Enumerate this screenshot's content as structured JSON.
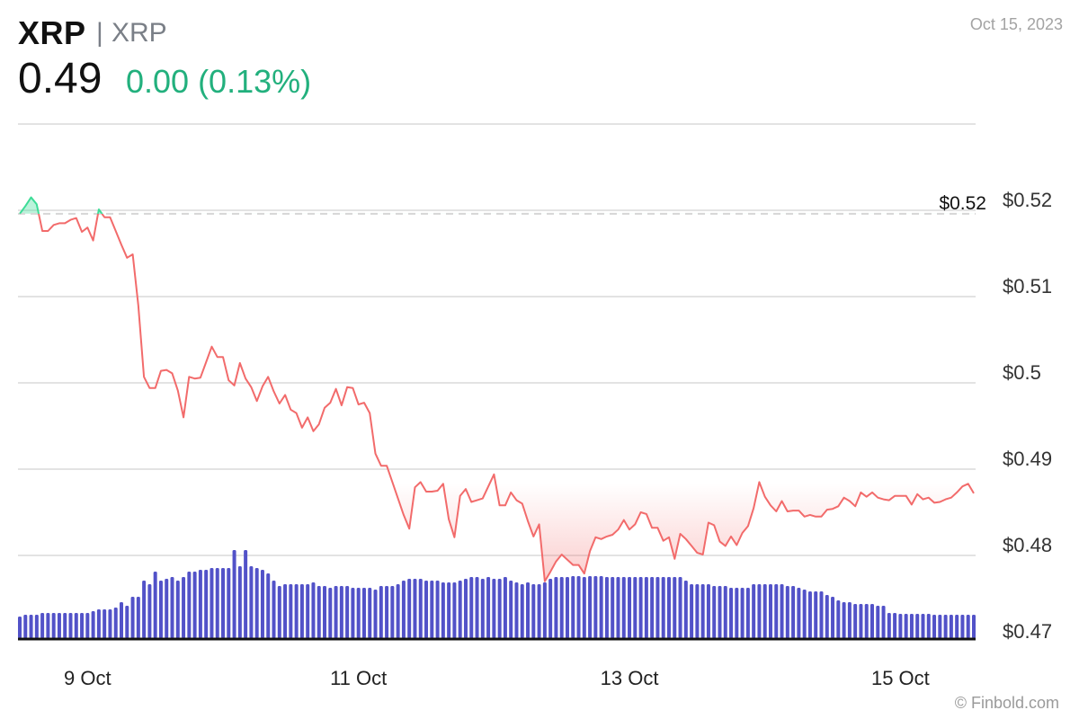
{
  "header": {
    "title": "XRP",
    "separator": "|",
    "symbol": "XRP",
    "price": "0.49",
    "change": "0.00 (0.13%)",
    "date": "Oct 15, 2023"
  },
  "footer": {
    "credit": "© Finbold.com"
  },
  "colors": {
    "line_below": "#f26b6b",
    "line_above": "#3ddc97",
    "volume_bars": "#5252c8",
    "change_positive": "#22b07d",
    "grid": "#e3e3e3"
  },
  "chart_data": {
    "type": "line",
    "baseline_type": "baseline area with volume bars",
    "reference_price": 0.5196,
    "reference_label": "$0.52",
    "ylim": [
      0.47,
      0.53
    ],
    "y_ticks": [
      0.47,
      0.48,
      0.49,
      0.5,
      0.51,
      0.52
    ],
    "y_tick_labels": [
      "$0.47",
      "$0.48",
      "$0.49",
      "$0.5",
      "$0.51",
      "$0.52"
    ],
    "x_ticks": [
      "Oct 9 00:00",
      "Oct 11 00:00",
      "Oct 13 00:00",
      "Oct 15 00:00"
    ],
    "x_tick_labels": [
      "9 Oct",
      "11 Oct",
      "13 Oct",
      "15 Oct"
    ],
    "grid": true,
    "x": [
      "Oct 8 12:00",
      "Oct 8 13:00",
      "Oct 8 14:00",
      "Oct 8 15:00",
      "Oct 8 16:00",
      "Oct 8 17:00",
      "Oct 8 18:00",
      "Oct 8 19:00",
      "Oct 8 20:00",
      "Oct 8 21:00",
      "Oct 8 22:00",
      "Oct 8 23:00",
      "Oct 9 00:00",
      "Oct 9 01:00",
      "Oct 9 02:00",
      "Oct 9 03:00",
      "Oct 9 04:00",
      "Oct 9 05:00",
      "Oct 9 06:00",
      "Oct 9 07:00",
      "Oct 9 08:00",
      "Oct 9 09:00",
      "Oct 9 10:00",
      "Oct 9 11:00",
      "Oct 9 12:00",
      "Oct 9 13:00",
      "Oct 9 14:00",
      "Oct 9 15:00",
      "Oct 9 16:00",
      "Oct 9 17:00",
      "Oct 9 18:00",
      "Oct 9 19:00",
      "Oct 9 20:00",
      "Oct 9 21:00",
      "Oct 9 22:00",
      "Oct 9 23:00",
      "Oct 10 00:00",
      "Oct 10 01:00",
      "Oct 10 02:00",
      "Oct 10 03:00",
      "Oct 10 04:00",
      "Oct 10 05:00",
      "Oct 10 06:00",
      "Oct 10 07:00",
      "Oct 10 08:00",
      "Oct 10 09:00",
      "Oct 10 10:00",
      "Oct 10 11:00",
      "Oct 10 12:00",
      "Oct 10 13:00",
      "Oct 10 14:00",
      "Oct 10 15:00",
      "Oct 10 16:00",
      "Oct 10 17:00",
      "Oct 10 18:00",
      "Oct 10 19:00",
      "Oct 10 20:00",
      "Oct 10 21:00",
      "Oct 10 22:00",
      "Oct 10 23:00",
      "Oct 11 00:00",
      "Oct 11 01:00",
      "Oct 11 02:00",
      "Oct 11 03:00",
      "Oct 11 04:00",
      "Oct 11 05:00",
      "Oct 11 06:00",
      "Oct 11 07:00",
      "Oct 11 08:00",
      "Oct 11 09:00",
      "Oct 11 10:00",
      "Oct 11 11:00",
      "Oct 11 12:00",
      "Oct 11 13:00",
      "Oct 11 14:00",
      "Oct 11 15:00",
      "Oct 11 16:00",
      "Oct 11 17:00",
      "Oct 11 18:00",
      "Oct 11 19:00",
      "Oct 11 20:00",
      "Oct 11 21:00",
      "Oct 11 22:00",
      "Oct 11 23:00",
      "Oct 12 00:00",
      "Oct 12 01:00",
      "Oct 12 02:00",
      "Oct 12 03:00",
      "Oct 12 04:00",
      "Oct 12 05:00",
      "Oct 12 06:00",
      "Oct 12 07:00",
      "Oct 12 08:00",
      "Oct 12 09:00",
      "Oct 12 10:00",
      "Oct 12 11:00",
      "Oct 12 12:00",
      "Oct 12 13:00",
      "Oct 12 14:00",
      "Oct 12 15:00",
      "Oct 12 16:00",
      "Oct 12 17:00",
      "Oct 12 18:00",
      "Oct 12 19:00",
      "Oct 12 20:00",
      "Oct 12 21:00",
      "Oct 12 22:00",
      "Oct 12 23:00",
      "Oct 13 00:00",
      "Oct 13 01:00",
      "Oct 13 02:00",
      "Oct 13 03:00",
      "Oct 13 04:00",
      "Oct 13 05:00",
      "Oct 13 06:00",
      "Oct 13 07:00",
      "Oct 13 08:00",
      "Oct 13 09:00",
      "Oct 13 10:00",
      "Oct 13 11:00",
      "Oct 13 12:00",
      "Oct 13 13:00",
      "Oct 13 14:00",
      "Oct 13 15:00",
      "Oct 13 16:00",
      "Oct 13 17:00",
      "Oct 13 18:00",
      "Oct 13 19:00",
      "Oct 13 20:00",
      "Oct 13 21:00",
      "Oct 13 22:00",
      "Oct 13 23:00",
      "Oct 14 00:00",
      "Oct 14 01:00",
      "Oct 14 02:00",
      "Oct 14 03:00",
      "Oct 14 04:00",
      "Oct 14 05:00",
      "Oct 14 06:00",
      "Oct 14 07:00",
      "Oct 14 08:00",
      "Oct 14 09:00",
      "Oct 14 10:00",
      "Oct 14 11:00",
      "Oct 14 12:00",
      "Oct 14 13:00",
      "Oct 14 14:00",
      "Oct 14 15:00",
      "Oct 14 16:00",
      "Oct 14 17:00",
      "Oct 14 18:00",
      "Oct 14 19:00",
      "Oct 14 20:00",
      "Oct 14 21:00",
      "Oct 14 22:00",
      "Oct 14 23:00",
      "Oct 15 00:00",
      "Oct 15 01:00",
      "Oct 15 02:00",
      "Oct 15 03:00",
      "Oct 15 04:00",
      "Oct 15 05:00",
      "Oct 15 06:00",
      "Oct 15 07:00",
      "Oct 15 08:00",
      "Oct 15 09:00",
      "Oct 15 10:00",
      "Oct 15 11:00",
      "Oct 15 12:00",
      "Oct 15 13:00"
    ],
    "price": [
      0.5196,
      0.5205,
      0.5215,
      0.5207,
      0.5176,
      0.5176,
      0.5183,
      0.5185,
      0.5185,
      0.5189,
      0.5191,
      0.5175,
      0.518,
      0.5165,
      0.5201,
      0.5192,
      0.5192,
      0.5176,
      0.516,
      0.5145,
      0.5149,
      0.509,
      0.5007,
      0.4994,
      0.4994,
      0.5014,
      0.5015,
      0.5011,
      0.4991,
      0.496,
      0.5007,
      0.5005,
      0.5006,
      0.5024,
      0.5042,
      0.503,
      0.503,
      0.5003,
      0.4997,
      0.5023,
      0.5005,
      0.4995,
      0.4979,
      0.4996,
      0.5007,
      0.499,
      0.4976,
      0.4986,
      0.4969,
      0.4965,
      0.4948,
      0.496,
      0.4944,
      0.4952,
      0.4971,
      0.4977,
      0.4993,
      0.4974,
      0.4995,
      0.4994,
      0.4975,
      0.4977,
      0.4965,
      0.4918,
      0.4904,
      0.4904,
      0.4885,
      0.4866,
      0.4847,
      0.4831,
      0.4879,
      0.4885,
      0.4874,
      0.4874,
      0.4875,
      0.4883,
      0.4842,
      0.4821,
      0.4869,
      0.4877,
      0.4862,
      0.4864,
      0.4866,
      0.488,
      0.4894,
      0.4858,
      0.4858,
      0.4873,
      0.4864,
      0.486,
      0.484,
      0.4822,
      0.4836,
      0.477,
      0.4781,
      0.4793,
      0.4801,
      0.4795,
      0.4789,
      0.4789,
      0.4779,
      0.4805,
      0.4821,
      0.4819,
      0.4822,
      0.4824,
      0.483,
      0.4841,
      0.483,
      0.4836,
      0.485,
      0.4848,
      0.4832,
      0.4832,
      0.4817,
      0.4821,
      0.4796,
      0.4825,
      0.4819,
      0.4811,
      0.4803,
      0.4801,
      0.4838,
      0.4835,
      0.4816,
      0.4811,
      0.4822,
      0.4812,
      0.4826,
      0.4834,
      0.4855,
      0.4885,
      0.4868,
      0.4858,
      0.4851,
      0.4863,
      0.4851,
      0.4852,
      0.4852,
      0.4845,
      0.4847,
      0.4845,
      0.4845,
      0.4853,
      0.4854,
      0.4857,
      0.4867,
      0.4863,
      0.4857,
      0.4873,
      0.4868,
      0.4873,
      0.4867,
      0.4865,
      0.4864,
      0.4869,
      0.4869,
      0.4869,
      0.4859,
      0.4871,
      0.4865,
      0.4867,
      0.4861,
      0.4862,
      0.4865,
      0.4867,
      0.4873,
      0.488,
      0.4883,
      0.4872
    ],
    "volume_relative": [
      24,
      26,
      26,
      26,
      28,
      28,
      28,
      28,
      28,
      28,
      28,
      28,
      28,
      30,
      32,
      32,
      32,
      34,
      40,
      36,
      46,
      46,
      64,
      60,
      74,
      64,
      66,
      68,
      64,
      68,
      74,
      74,
      76,
      76,
      78,
      78,
      78,
      78,
      98,
      80,
      98,
      80,
      78,
      76,
      72,
      64,
      58,
      60,
      60,
      60,
      60,
      60,
      62,
      58,
      58,
      56,
      58,
      58,
      58,
      56,
      56,
      56,
      56,
      54,
      58,
      58,
      58,
      60,
      64,
      66,
      66,
      66,
      64,
      64,
      64,
      62,
      62,
      62,
      64,
      66,
      68,
      68,
      66,
      68,
      66,
      66,
      68,
      64,
      62,
      60,
      62,
      60,
      60,
      62,
      66,
      68,
      68,
      68,
      69,
      69,
      68,
      69,
      69,
      69,
      68,
      68,
      68,
      68,
      68,
      68,
      68,
      68,
      68,
      68,
      68,
      68,
      68,
      68,
      64,
      60,
      60,
      60,
      60,
      58,
      58,
      58,
      56,
      56,
      56,
      56,
      60,
      60,
      60,
      60,
      60,
      60,
      58,
      58,
      56,
      54,
      52,
      52,
      52,
      48,
      46,
      42,
      40,
      40,
      38,
      38,
      38,
      38,
      36,
      36,
      28,
      28,
      27,
      27,
      27,
      27,
      27,
      27,
      26,
      26,
      26,
      26,
      26,
      26,
      26,
      26
    ]
  }
}
